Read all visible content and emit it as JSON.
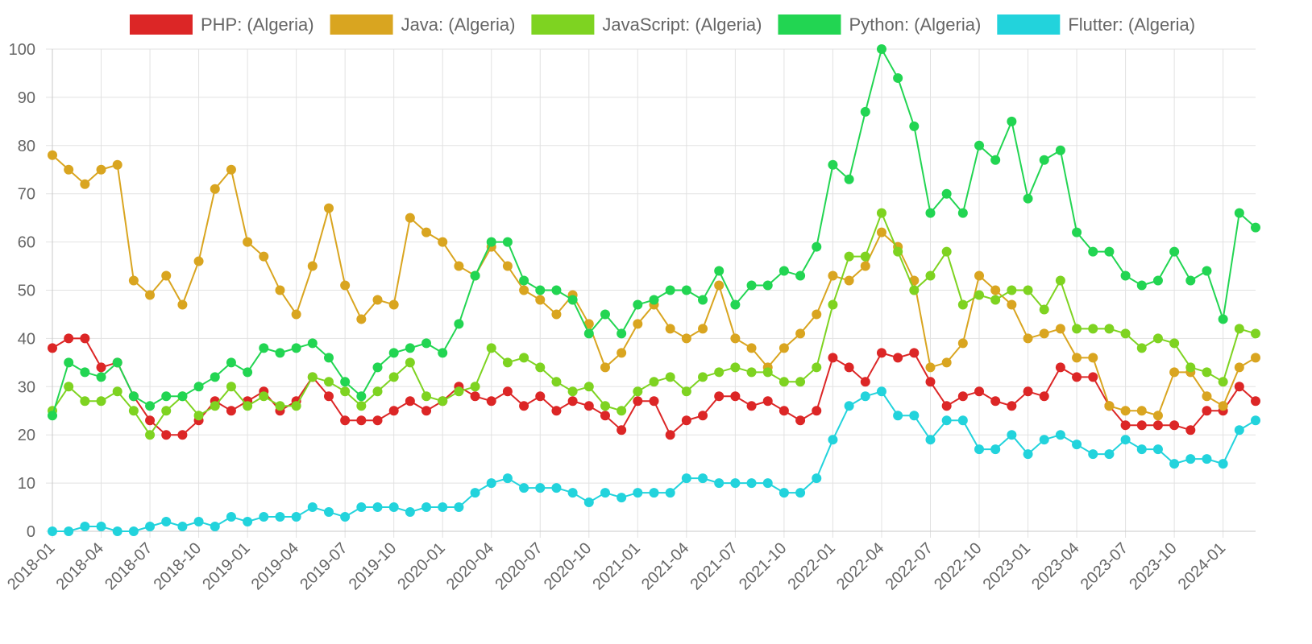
{
  "chart_data": {
    "type": "line",
    "title": "",
    "xlabel": "",
    "ylabel": "",
    "ylim": [
      0,
      100
    ],
    "y_ticks": [
      0,
      10,
      20,
      30,
      40,
      50,
      60,
      70,
      80,
      90,
      100
    ],
    "grid": true,
    "legend_position": "top",
    "x_start": "2018-01",
    "x_tick_labels": [
      "2018-01",
      "2018-04",
      "2018-07",
      "2018-10",
      "2019-01",
      "2019-04",
      "2019-07",
      "2019-10",
      "2020-01",
      "2020-04",
      "2020-07",
      "2020-10",
      "2021-01",
      "2021-04",
      "2021-07",
      "2021-10",
      "2022-01",
      "2022-04",
      "2022-07",
      "2022-10",
      "2023-01",
      "2023-04",
      "2023-07",
      "2023-10",
      "2024-01"
    ],
    "x": [
      "2018-01",
      "2018-02",
      "2018-03",
      "2018-04",
      "2018-05",
      "2018-06",
      "2018-07",
      "2018-08",
      "2018-09",
      "2018-10",
      "2018-11",
      "2018-12",
      "2019-01",
      "2019-02",
      "2019-03",
      "2019-04",
      "2019-05",
      "2019-06",
      "2019-07",
      "2019-08",
      "2019-09",
      "2019-10",
      "2019-11",
      "2019-12",
      "2020-01",
      "2020-02",
      "2020-03",
      "2020-04",
      "2020-05",
      "2020-06",
      "2020-07",
      "2020-08",
      "2020-09",
      "2020-10",
      "2020-11",
      "2020-12",
      "2021-01",
      "2021-02",
      "2021-03",
      "2021-04",
      "2021-05",
      "2021-06",
      "2021-07",
      "2021-08",
      "2021-09",
      "2021-10",
      "2021-11",
      "2021-12",
      "2022-01",
      "2022-02",
      "2022-03",
      "2022-04",
      "2022-05",
      "2022-06",
      "2022-07",
      "2022-08",
      "2022-09",
      "2022-10",
      "2022-11",
      "2022-12",
      "2023-01",
      "2023-02",
      "2023-03",
      "2023-04",
      "2023-05",
      "2023-06",
      "2023-07",
      "2023-08",
      "2023-09",
      "2023-10",
      "2023-11",
      "2023-12",
      "2024-01",
      "2024-02",
      "2024-03"
    ],
    "series": [
      {
        "name": "PHP: (Algeria)",
        "color": "#dc2626",
        "values": [
          38,
          40,
          40,
          34,
          35,
          28,
          23,
          20,
          20,
          23,
          27,
          25,
          27,
          29,
          25,
          27,
          32,
          28,
          23,
          23,
          23,
          25,
          27,
          25,
          27,
          30,
          28,
          27,
          29,
          26,
          28,
          25,
          27,
          26,
          24,
          21,
          27,
          27,
          20,
          23,
          24,
          28,
          28,
          26,
          27,
          25,
          23,
          25,
          36,
          34,
          31,
          37,
          36,
          37,
          31,
          26,
          28,
          29,
          27,
          26,
          29,
          28,
          34,
          32,
          32,
          26,
          22,
          22,
          22,
          22,
          21,
          25,
          25,
          30,
          27
        ]
      },
      {
        "name": "Java: (Algeria)",
        "color": "#d9a520",
        "values": [
          78,
          75,
          72,
          75,
          76,
          52,
          49,
          53,
          47,
          56,
          71,
          75,
          60,
          57,
          50,
          45,
          55,
          67,
          51,
          44,
          48,
          47,
          65,
          62,
          60,
          55,
          53,
          59,
          55,
          50,
          48,
          45,
          49,
          43,
          34,
          37,
          43,
          47,
          42,
          40,
          42,
          51,
          40,
          38,
          34,
          38,
          41,
          45,
          53,
          52,
          55,
          62,
          59,
          52,
          34,
          35,
          39,
          53,
          50,
          47,
          40,
          41,
          42,
          36,
          36,
          26,
          25,
          25,
          24,
          33,
          33,
          28,
          26,
          34,
          36
        ]
      },
      {
        "name": "JavaScript: (Algeria)",
        "color": "#7ed321",
        "values": [
          25,
          30,
          27,
          27,
          29,
          25,
          20,
          25,
          28,
          24,
          26,
          30,
          26,
          28,
          26,
          26,
          32,
          31,
          29,
          26,
          29,
          32,
          35,
          28,
          27,
          29,
          30,
          38,
          35,
          36,
          34,
          31,
          29,
          30,
          26,
          25,
          29,
          31,
          32,
          29,
          32,
          33,
          34,
          33,
          33,
          31,
          31,
          34,
          47,
          57,
          57,
          66,
          58,
          50,
          53,
          58,
          47,
          49,
          48,
          50,
          50,
          46,
          52,
          42,
          42,
          42,
          41,
          38,
          40,
          39,
          34,
          33,
          31,
          42,
          41
        ]
      },
      {
        "name": "Python: (Algeria)",
        "color": "#22d552",
        "values": [
          24,
          35,
          33,
          32,
          35,
          28,
          26,
          28,
          28,
          30,
          32,
          35,
          33,
          38,
          37,
          38,
          39,
          36,
          31,
          28,
          34,
          37,
          38,
          39,
          37,
          43,
          53,
          60,
          60,
          52,
          50,
          50,
          48,
          41,
          45,
          41,
          47,
          48,
          50,
          50,
          48,
          54,
          47,
          51,
          51,
          54,
          53,
          59,
          76,
          73,
          87,
          100,
          94,
          84,
          66,
          70,
          66,
          80,
          77,
          85,
          69,
          77,
          79,
          62,
          58,
          58,
          53,
          51,
          52,
          58,
          52,
          54,
          44,
          66,
          63
        ]
      },
      {
        "name": "Flutter: (Algeria)",
        "color": "#22d3dc",
        "values": [
          0,
          0,
          1,
          1,
          0,
          0,
          1,
          2,
          1,
          2,
          1,
          3,
          2,
          3,
          3,
          3,
          5,
          4,
          3,
          5,
          5,
          5,
          4,
          5,
          5,
          5,
          8,
          10,
          11,
          9,
          9,
          9,
          8,
          6,
          8,
          7,
          8,
          8,
          8,
          11,
          11,
          10,
          10,
          10,
          10,
          8,
          8,
          11,
          19,
          26,
          28,
          29,
          24,
          24,
          19,
          23,
          23,
          17,
          17,
          20,
          16,
          19,
          20,
          18,
          16,
          16,
          19,
          17,
          17,
          14,
          15,
          15,
          14,
          21,
          23
        ]
      }
    ]
  }
}
